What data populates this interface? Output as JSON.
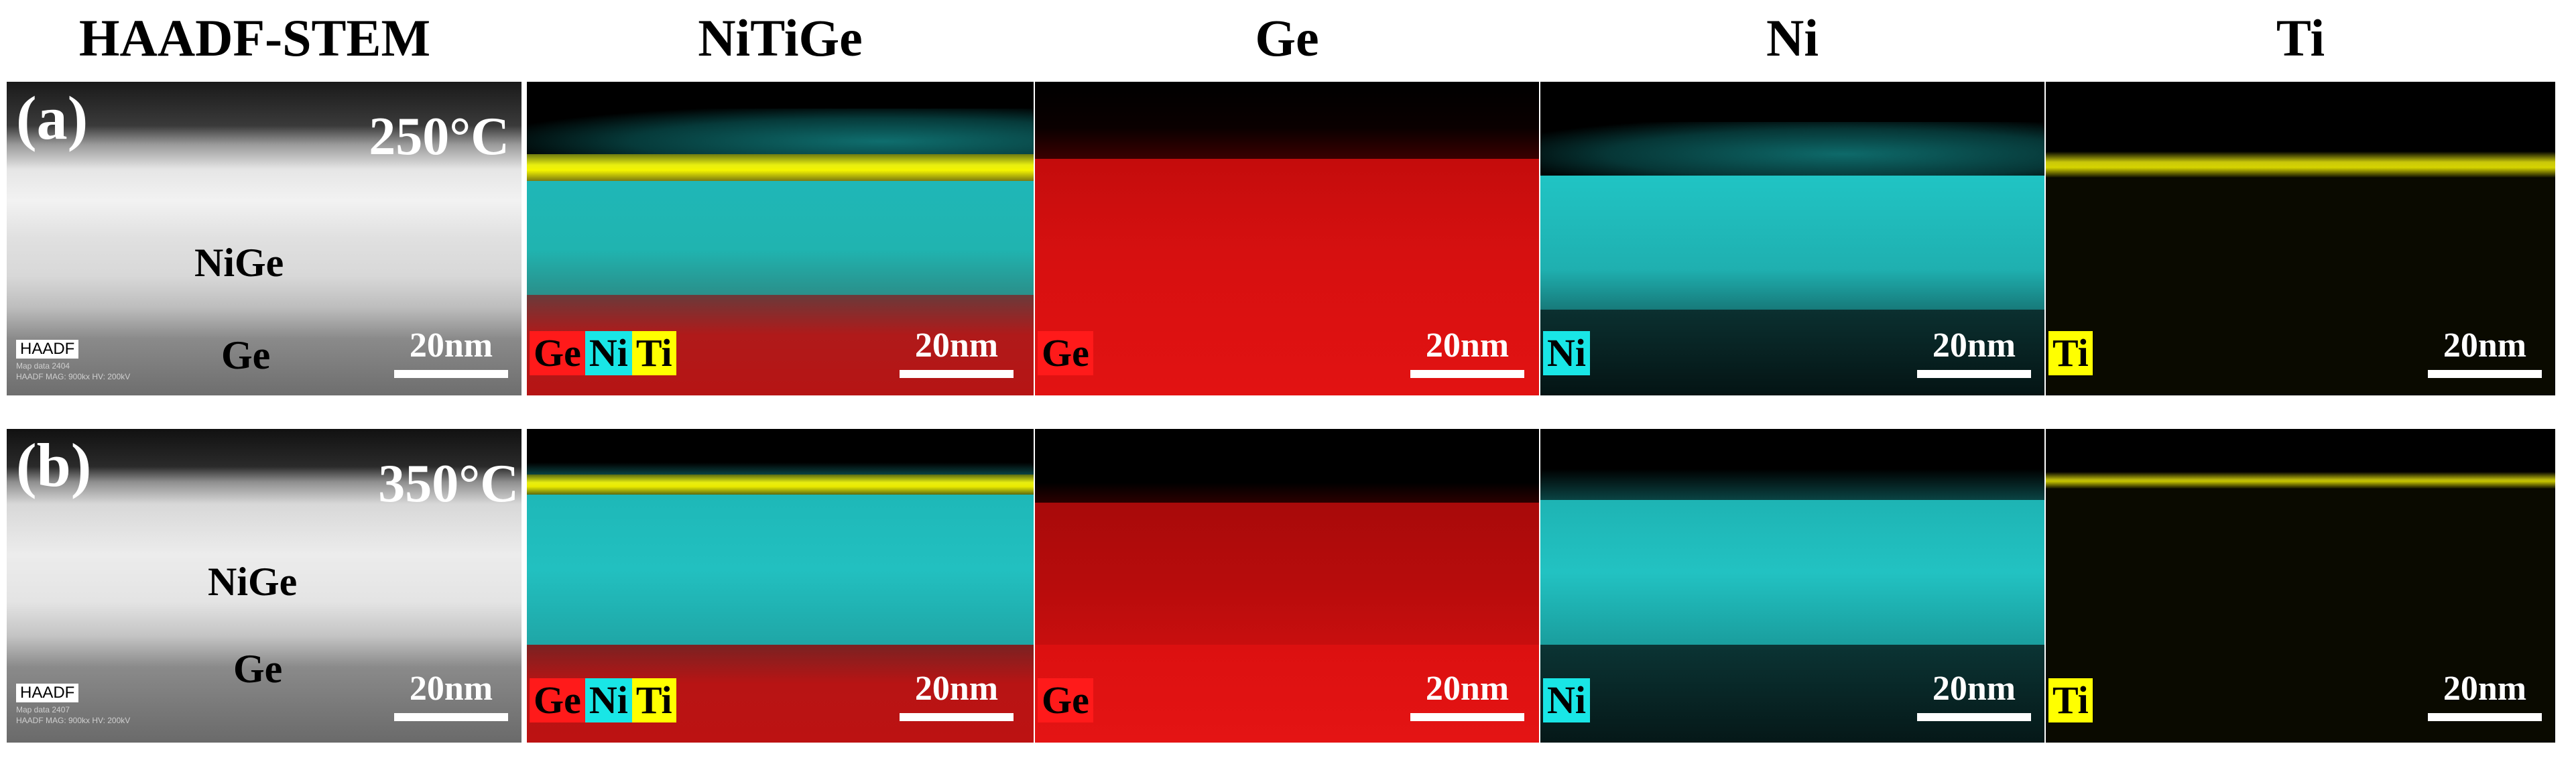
{
  "columns": {
    "haadf": "HAADF-STEM",
    "nitige": "NiTiGe",
    "ge": "Ge",
    "ni": "Ni",
    "ti": "Ti"
  },
  "rows": [
    {
      "label": "(a)",
      "temperature": "250°C",
      "layer_nige": "NiGe",
      "layer_ge": "Ge",
      "haadf_box": "HAADF",
      "haadf_meta_1": "Map data 2404",
      "haadf_meta_2": "HAADF  MAG: 900kx  HV: 200kV",
      "scale": "20nm"
    },
    {
      "label": "(b)",
      "temperature": "350°C",
      "layer_nige": "NiGe",
      "layer_ge": "Ge",
      "haadf_box": "HAADF",
      "haadf_meta_1": "Map data 2407",
      "haadf_meta_2": "HAADF  MAG: 900kx  HV: 200kV",
      "scale": "20nm"
    }
  ],
  "legend": {
    "ge": "Ge",
    "ni": "Ni",
    "ti": "Ti"
  },
  "colors": {
    "ge": "#ff1a1a",
    "ni": "#19e6e6",
    "ti": "#ffff00"
  }
}
